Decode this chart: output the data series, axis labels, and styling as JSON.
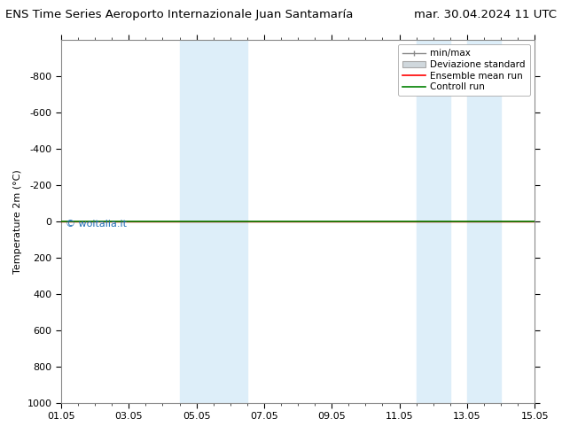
{
  "title_left": "ENS Time Series Aeroporto Internazionale Juan Santamaría",
  "title_right": "mar. 30.04.2024 11 UTC",
  "ylabel": "Temperature 2m (°C)",
  "xlabel": "",
  "xtick_labels": [
    "01.05",
    "03.05",
    "05.05",
    "07.05",
    "09.05",
    "11.05",
    "13.05",
    "15.05"
  ],
  "xtick_positions": [
    0,
    2,
    4,
    6,
    8,
    10,
    12,
    14
  ],
  "ylim": [
    -1000,
    1000
  ],
  "yticks": [
    -800,
    -600,
    -400,
    -200,
    0,
    200,
    400,
    600,
    800,
    1000
  ],
  "ytick_labels": [
    "-800",
    "-600",
    "-400",
    "-200",
    "0",
    "200",
    "400",
    "600",
    "800",
    "1000"
  ],
  "shaded_bands": [
    {
      "x_start": 3.5,
      "x_end": 4.5,
      "color": "#ddeef9"
    },
    {
      "x_start": 4.5,
      "x_end": 5.5,
      "color": "#ddeef9"
    },
    {
      "x_start": 10.5,
      "x_end": 11.5,
      "color": "#ddeef9"
    },
    {
      "x_start": 12.0,
      "x_end": 13.0,
      "color": "#ddeef9"
    }
  ],
  "line_y": 0.0,
  "ensemble_mean_color": "#ff0000",
  "control_run_color": "#008000",
  "std_band_color": "#d0d8dd",
  "minmax_color": "#888888",
  "watermark": "© woitalia.it",
  "watermark_color": "#1e6eb5",
  "background_color": "#ffffff",
  "plot_bg_color": "#ffffff",
  "border_color": "#888888",
  "legend_fontsize": 7.5,
  "title_fontsize": 9.5,
  "tick_labelsize": 8,
  "figsize": [
    6.34,
    4.9
  ],
  "dpi": 100
}
